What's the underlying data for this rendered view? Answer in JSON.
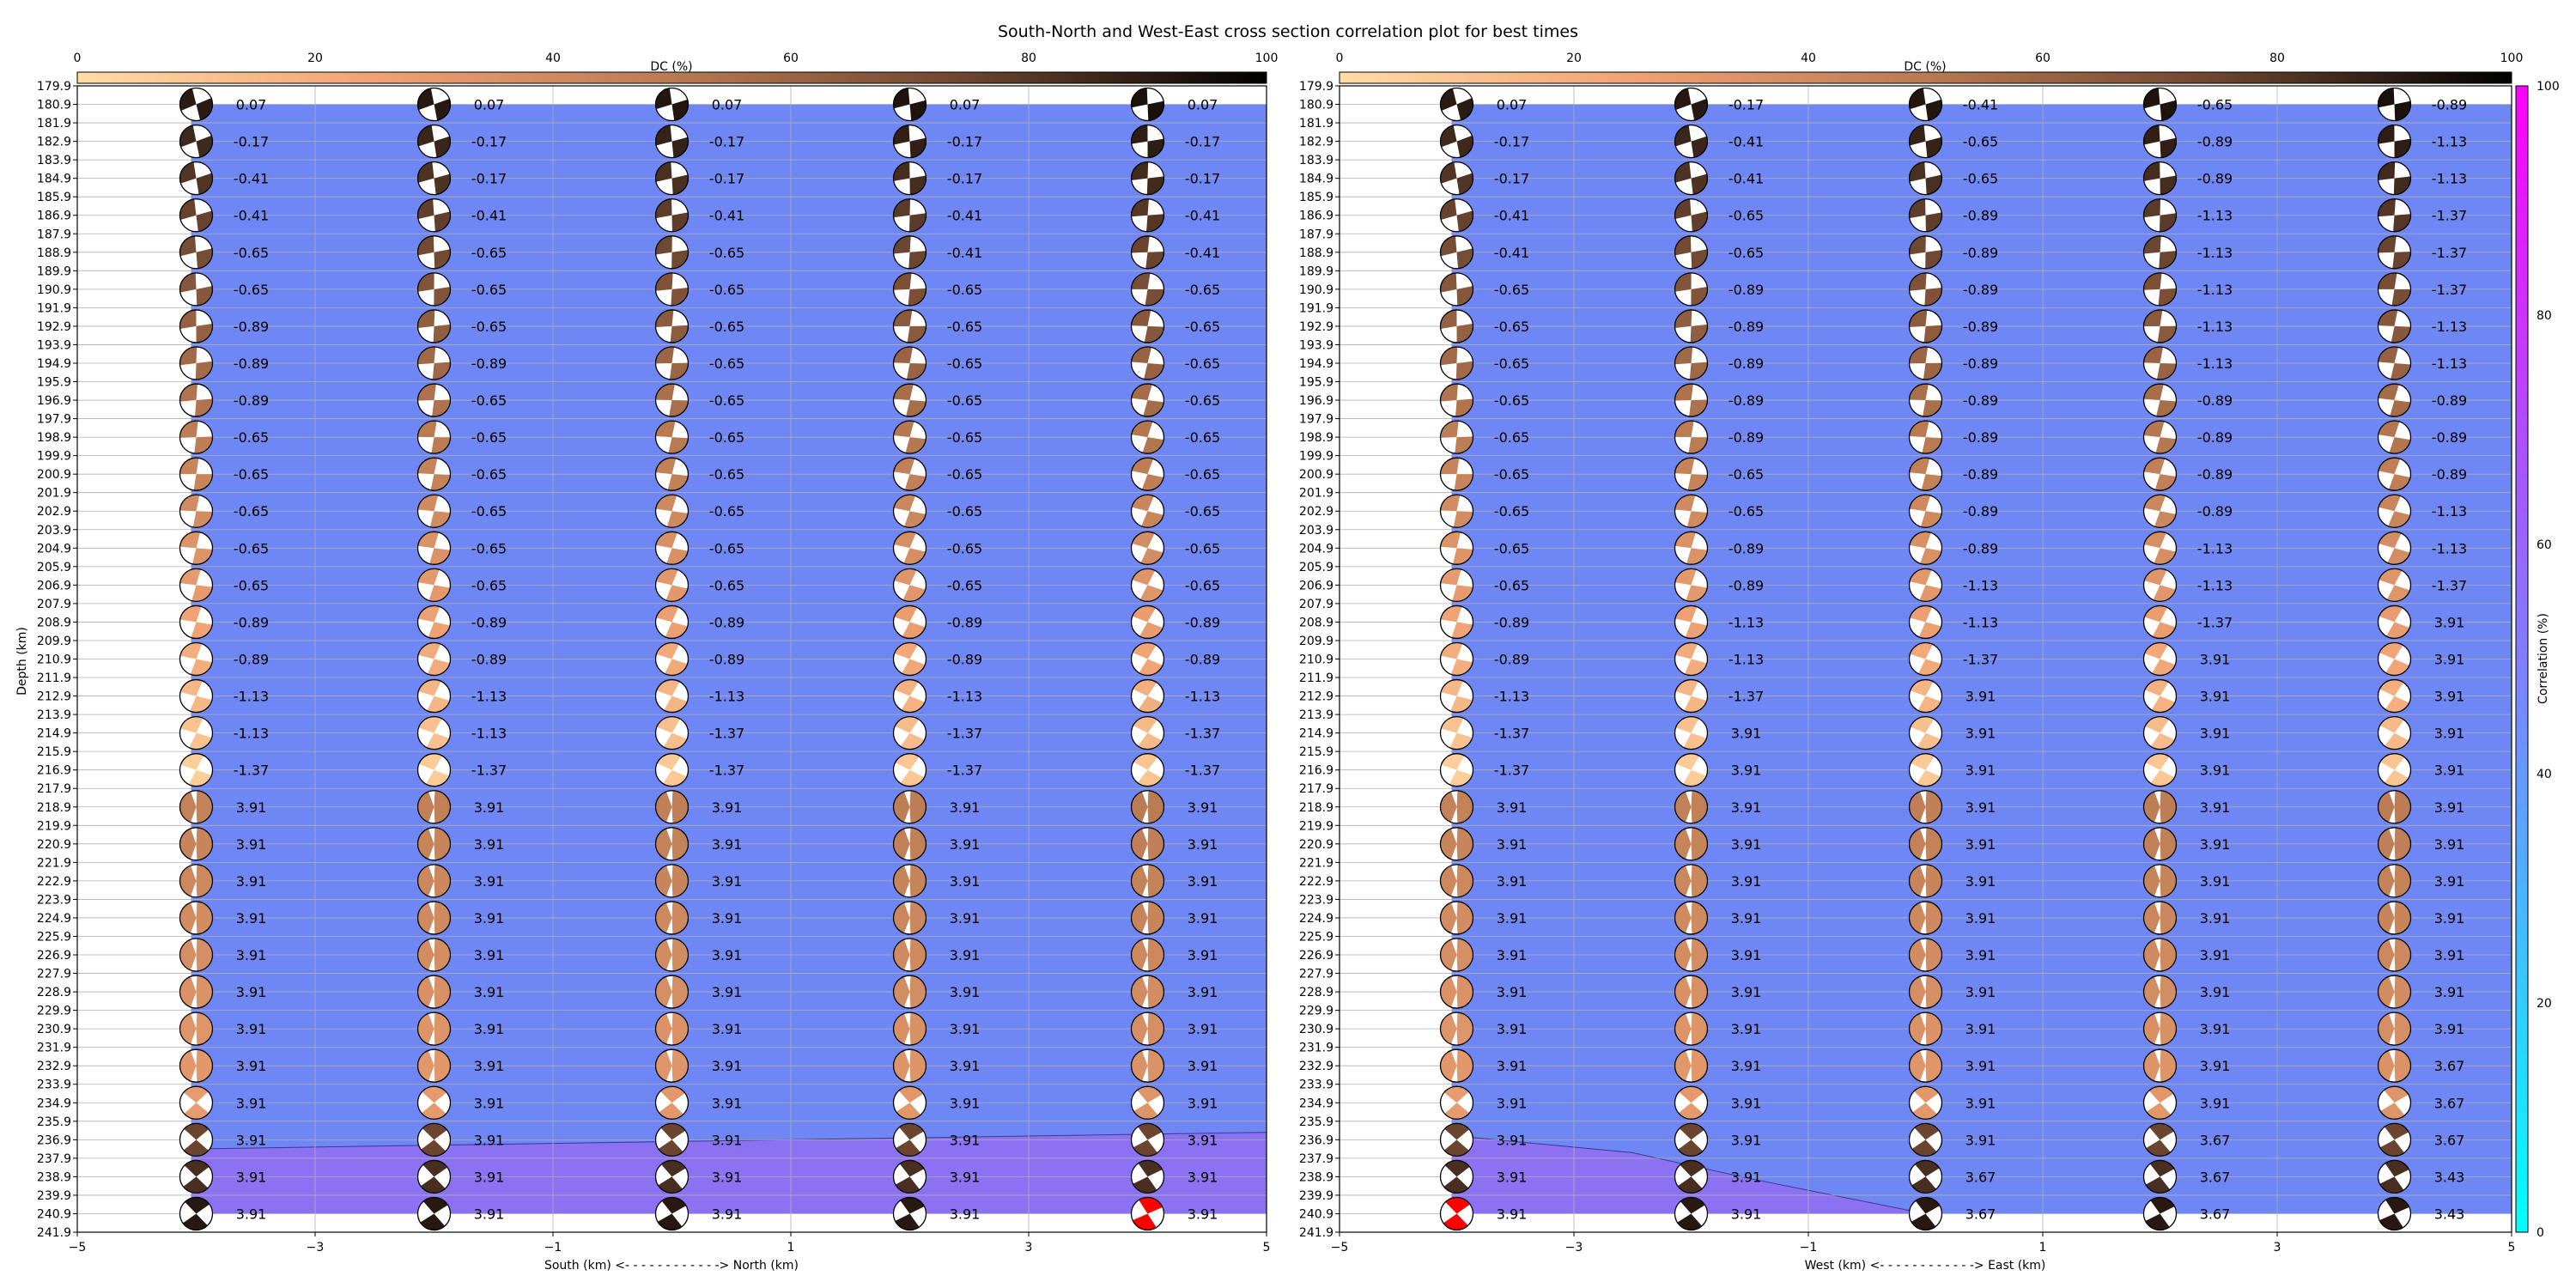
{
  "title": "South-North and West-East cross section correlation plot for best times",
  "dc_colorbar": {
    "label": "DC (%)",
    "ticks": [
      "0",
      "20",
      "40",
      "60",
      "80",
      "100"
    ],
    "range": [
      0,
      100
    ]
  },
  "corr_colorbar": {
    "label": "Correlation (%)",
    "ticks": [
      "0",
      "20",
      "40",
      "60",
      "80",
      "100"
    ],
    "range": [
      0,
      100
    ],
    "colors": [
      "#00ffff",
      "#ff00ff"
    ]
  },
  "colors": {
    "fill_upper": "#6f86f5",
    "fill_lower": "#8c72f3",
    "best_solution": "#ff0000",
    "dc_low": "#ffd9a3",
    "dc_high": "#000000"
  },
  "chart_data": [
    {
      "type": "scatter",
      "panel": "south-north",
      "xlabel": "South (km) <- - - - - - - - - - - -> North (km)",
      "ylabel": "Depth (km)",
      "xlim": [
        -5,
        5
      ],
      "x_ticks": [
        "−5",
        "−3",
        "−1",
        "1",
        "3",
        "5"
      ],
      "depth_ticks": [
        "179.9",
        "180.9",
        "181.9",
        "182.9",
        "183.9",
        "184.9",
        "185.9",
        "186.9",
        "187.9",
        "188.9",
        "189.9",
        "190.9",
        "191.9",
        "192.9",
        "193.9",
        "194.9",
        "195.9",
        "196.9",
        "197.9",
        "198.9",
        "199.9",
        "200.9",
        "201.9",
        "202.9",
        "203.9",
        "204.9",
        "205.9",
        "206.9",
        "207.9",
        "208.9",
        "209.9",
        "210.9",
        "211.9",
        "212.9",
        "213.9",
        "214.9",
        "215.9",
        "216.9",
        "217.9",
        "218.9",
        "219.9",
        "220.9",
        "221.9",
        "222.9",
        "223.9",
        "224.9",
        "225.9",
        "226.9",
        "227.9",
        "228.9",
        "229.9",
        "230.9",
        "231.9",
        "232.9",
        "233.9",
        "234.9",
        "235.9",
        "236.9",
        "237.9",
        "238.9",
        "239.9",
        "240.9",
        "241.9"
      ],
      "x": [
        -4,
        -2,
        0,
        2,
        4
      ],
      "depths": [
        180.9,
        182.9,
        184.9,
        186.9,
        188.9,
        190.9,
        192.9,
        194.9,
        196.9,
        198.9,
        200.9,
        202.9,
        204.9,
        206.9,
        208.9,
        210.9,
        212.9,
        214.9,
        216.9,
        218.9,
        220.9,
        222.9,
        224.9,
        226.9,
        228.9,
        230.9,
        232.9,
        234.9,
        236.9,
        238.9,
        240.9
      ],
      "values": [
        [
          "0.07",
          "0.07",
          "0.07",
          "0.07",
          "0.07"
        ],
        [
          "-0.17",
          "-0.17",
          "-0.17",
          "-0.17",
          "-0.17"
        ],
        [
          "-0.41",
          "-0.17",
          "-0.17",
          "-0.17",
          "-0.17"
        ],
        [
          "-0.41",
          "-0.41",
          "-0.41",
          "-0.41",
          "-0.41"
        ],
        [
          "-0.65",
          "-0.65",
          "-0.65",
          "-0.41",
          "-0.41"
        ],
        [
          "-0.65",
          "-0.65",
          "-0.65",
          "-0.65",
          "-0.65"
        ],
        [
          "-0.89",
          "-0.65",
          "-0.65",
          "-0.65",
          "-0.65"
        ],
        [
          "-0.89",
          "-0.89",
          "-0.65",
          "-0.65",
          "-0.65"
        ],
        [
          "-0.89",
          "-0.65",
          "-0.65",
          "-0.65",
          "-0.65"
        ],
        [
          "-0.65",
          "-0.65",
          "-0.65",
          "-0.65",
          "-0.65"
        ],
        [
          "-0.65",
          "-0.65",
          "-0.65",
          "-0.65",
          "-0.65"
        ],
        [
          "-0.65",
          "-0.65",
          "-0.65",
          "-0.65",
          "-0.65"
        ],
        [
          "-0.65",
          "-0.65",
          "-0.65",
          "-0.65",
          "-0.65"
        ],
        [
          "-0.65",
          "-0.65",
          "-0.65",
          "-0.65",
          "-0.65"
        ],
        [
          "-0.89",
          "-0.89",
          "-0.89",
          "-0.89",
          "-0.89"
        ],
        [
          "-0.89",
          "-0.89",
          "-0.89",
          "-0.89",
          "-0.89"
        ],
        [
          "-1.13",
          "-1.13",
          "-1.13",
          "-1.13",
          "-1.13"
        ],
        [
          "-1.13",
          "-1.13",
          "-1.37",
          "-1.37",
          "-1.37"
        ],
        [
          "-1.37",
          "-1.37",
          "-1.37",
          "-1.37",
          "-1.37"
        ],
        [
          "3.91",
          "3.91",
          "3.91",
          "3.91",
          "3.91"
        ],
        [
          "3.91",
          "3.91",
          "3.91",
          "3.91",
          "3.91"
        ],
        [
          "3.91",
          "3.91",
          "3.91",
          "3.91",
          "3.91"
        ],
        [
          "3.91",
          "3.91",
          "3.91",
          "3.91",
          "3.91"
        ],
        [
          "3.91",
          "3.91",
          "3.91",
          "3.91",
          "3.91"
        ],
        [
          "3.91",
          "3.91",
          "3.91",
          "3.91",
          "3.91"
        ],
        [
          "3.91",
          "3.91",
          "3.91",
          "3.91",
          "3.91"
        ],
        [
          "3.91",
          "3.91",
          "3.91",
          "3.91",
          "3.91"
        ],
        [
          "3.91",
          "3.91",
          "3.91",
          "3.91",
          "3.91"
        ],
        [
          "3.91",
          "3.91",
          "3.91",
          "3.91",
          "3.91"
        ],
        [
          "3.91",
          "3.91",
          "3.91",
          "3.91",
          "3.91"
        ],
        [
          "3.91",
          "3.91",
          "3.91",
          "3.91",
          "3.91"
        ]
      ],
      "best": {
        "x": 4,
        "depth": 240.9
      },
      "boundary_depth": [
        [
          -5,
          237.4
        ],
        [
          5,
          236.5
        ]
      ],
      "shading": {
        "upper": "fill_upper",
        "lower": "fill_lower"
      }
    },
    {
      "type": "scatter",
      "panel": "west-east",
      "xlabel": "West (km) <- - - - - - - - - - - -> East (km)",
      "ylabel": "",
      "xlim": [
        -5,
        5
      ],
      "x_ticks": [
        "−5",
        "−3",
        "−1",
        "1",
        "3",
        "5"
      ],
      "depth_ticks": [
        "179.9",
        "180.9",
        "181.9",
        "182.9",
        "183.9",
        "184.9",
        "185.9",
        "186.9",
        "187.9",
        "188.9",
        "189.9",
        "190.9",
        "191.9",
        "192.9",
        "193.9",
        "194.9",
        "195.9",
        "196.9",
        "197.9",
        "198.9",
        "199.9",
        "200.9",
        "201.9",
        "202.9",
        "203.9",
        "204.9",
        "205.9",
        "206.9",
        "207.9",
        "208.9",
        "209.9",
        "210.9",
        "211.9",
        "212.9",
        "213.9",
        "214.9",
        "215.9",
        "216.9",
        "217.9",
        "218.9",
        "219.9",
        "220.9",
        "221.9",
        "222.9",
        "223.9",
        "224.9",
        "225.9",
        "226.9",
        "227.9",
        "228.9",
        "229.9",
        "230.9",
        "231.9",
        "232.9",
        "233.9",
        "234.9",
        "235.9",
        "236.9",
        "237.9",
        "238.9",
        "239.9",
        "240.9",
        "241.9"
      ],
      "x": [
        -4,
        -2,
        0,
        2,
        4
      ],
      "depths": [
        180.9,
        182.9,
        184.9,
        186.9,
        188.9,
        190.9,
        192.9,
        194.9,
        196.9,
        198.9,
        200.9,
        202.9,
        204.9,
        206.9,
        208.9,
        210.9,
        212.9,
        214.9,
        216.9,
        218.9,
        220.9,
        222.9,
        224.9,
        226.9,
        228.9,
        230.9,
        232.9,
        234.9,
        236.9,
        238.9,
        240.9
      ],
      "values": [
        [
          "0.07",
          "-0.17",
          "-0.41",
          "-0.65",
          "-0.89"
        ],
        [
          "-0.17",
          "-0.41",
          "-0.65",
          "-0.89",
          "-1.13"
        ],
        [
          "-0.17",
          "-0.41",
          "-0.65",
          "-0.89",
          "-1.13"
        ],
        [
          "-0.41",
          "-0.65",
          "-0.89",
          "-1.13",
          "-1.37"
        ],
        [
          "-0.41",
          "-0.65",
          "-0.89",
          "-1.13",
          "-1.37"
        ],
        [
          "-0.65",
          "-0.89",
          "-0.89",
          "-1.13",
          "-1.37"
        ],
        [
          "-0.65",
          "-0.89",
          "-0.89",
          "-1.13",
          "-1.13"
        ],
        [
          "-0.65",
          "-0.89",
          "-0.89",
          "-1.13",
          "-1.13"
        ],
        [
          "-0.65",
          "-0.89",
          "-0.89",
          "-0.89",
          "-0.89"
        ],
        [
          "-0.65",
          "-0.89",
          "-0.89",
          "-0.89",
          "-0.89"
        ],
        [
          "-0.65",
          "-0.65",
          "-0.89",
          "-0.89",
          "-0.89"
        ],
        [
          "-0.65",
          "-0.65",
          "-0.89",
          "-0.89",
          "-1.13"
        ],
        [
          "-0.65",
          "-0.89",
          "-0.89",
          "-1.13",
          "-1.13"
        ],
        [
          "-0.65",
          "-0.89",
          "-1.13",
          "-1.13",
          "-1.37"
        ],
        [
          "-0.89",
          "-1.13",
          "-1.13",
          "-1.37",
          "3.91"
        ],
        [
          "-0.89",
          "-1.13",
          "-1.37",
          "3.91",
          "3.91"
        ],
        [
          "-1.13",
          "-1.37",
          "3.91",
          "3.91",
          "3.91"
        ],
        [
          "-1.37",
          "3.91",
          "3.91",
          "3.91",
          "3.91"
        ],
        [
          "-1.37",
          "3.91",
          "3.91",
          "3.91",
          "3.91"
        ],
        [
          "3.91",
          "3.91",
          "3.91",
          "3.91",
          "3.91"
        ],
        [
          "3.91",
          "3.91",
          "3.91",
          "3.91",
          "3.91"
        ],
        [
          "3.91",
          "3.91",
          "3.91",
          "3.91",
          "3.91"
        ],
        [
          "3.91",
          "3.91",
          "3.91",
          "3.91",
          "3.91"
        ],
        [
          "3.91",
          "3.91",
          "3.91",
          "3.91",
          "3.91"
        ],
        [
          "3.91",
          "3.91",
          "3.91",
          "3.91",
          "3.91"
        ],
        [
          "3.91",
          "3.91",
          "3.91",
          "3.91",
          "3.91"
        ],
        [
          "3.91",
          "3.91",
          "3.91",
          "3.91",
          "3.67"
        ],
        [
          "3.91",
          "3.91",
          "3.91",
          "3.91",
          "3.67"
        ],
        [
          "3.91",
          "3.91",
          "3.91",
          "3.67",
          "3.67"
        ],
        [
          "3.91",
          "3.91",
          "3.67",
          "3.67",
          "3.43"
        ],
        [
          "3.91",
          "3.91",
          "3.67",
          "3.67",
          "3.43"
        ]
      ],
      "best": {
        "x": -4,
        "depth": 240.9
      },
      "boundary_depth": [
        [
          -4,
          236.7
        ],
        [
          -2.5,
          237.6
        ],
        [
          -1.5,
          239.0
        ],
        [
          0,
          240.9
        ]
      ],
      "shading": {
        "upper": "fill_upper",
        "lower": "fill_lower"
      }
    }
  ]
}
